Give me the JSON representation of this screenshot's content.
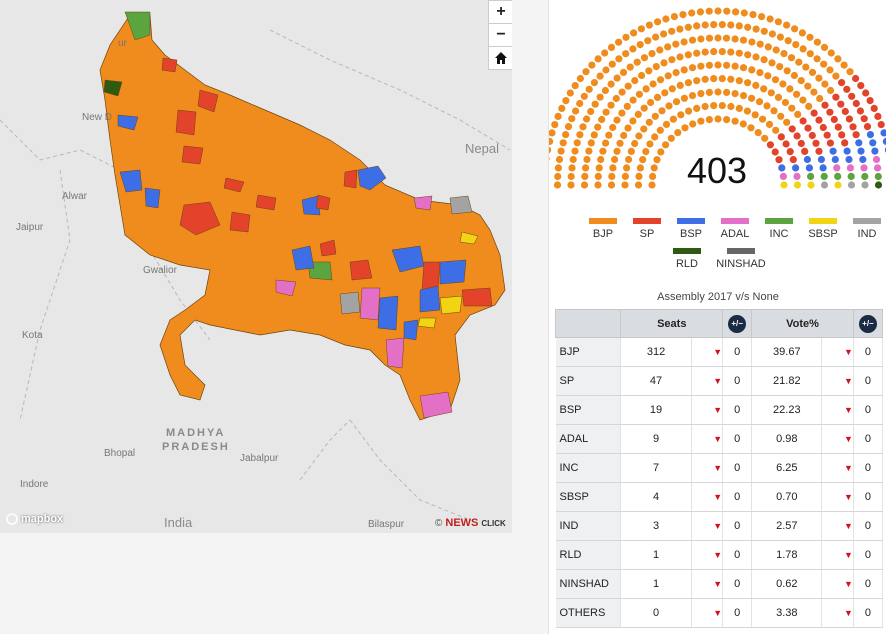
{
  "map": {
    "labels": {
      "new_delhi": "New D",
      "alwar": "Alwar",
      "jaipur": "Jaipur",
      "gwalior": "Gwalior",
      "kota": "Kota",
      "nepal": "Nepal",
      "madhya": "MADHYA",
      "pradesh": "PRADESH",
      "bhopal": "Bhopal",
      "jabalpur": "Jabalpur",
      "indore": "Indore",
      "india": "India",
      "bilaspur": "Bilaspur",
      "ur": "ur"
    },
    "controls": {
      "zoom_in": "+",
      "zoom_out": "−",
      "home": "⌂"
    },
    "attribution": {
      "mapbox": "mapbox",
      "copyright": "©",
      "news": "NEWS",
      "click": "CLICK"
    }
  },
  "parliament": {
    "total": "403",
    "parties": [
      {
        "name": "BJP",
        "seats": 312,
        "color": "#ef8c1d"
      },
      {
        "name": "SP",
        "seats": 47,
        "color": "#e2432a"
      },
      {
        "name": "BSP",
        "seats": 19,
        "color": "#3d6ee6"
      },
      {
        "name": "ADAL",
        "seats": 9,
        "color": "#e46fc6"
      },
      {
        "name": "INC",
        "seats": 7,
        "color": "#5ba43f"
      },
      {
        "name": "SBSP",
        "seats": 4,
        "color": "#f1d515"
      },
      {
        "name": "IND",
        "seats": 3,
        "color": "#a3a3a3"
      },
      {
        "name": "RLD",
        "seats": 1,
        "color": "#2e5a11"
      },
      {
        "name": "NINSHAD",
        "seats": 1,
        "color": "#666666"
      }
    ]
  },
  "table": {
    "caption": "Assembly 2017 v/s None",
    "headers": {
      "seats": "Seats",
      "vote": "Vote%",
      "toggle": "+/−"
    },
    "rows": [
      {
        "party": "BJP",
        "seats": "312",
        "seats_change": "0",
        "vote": "39.67",
        "vote_change": "0"
      },
      {
        "party": "SP",
        "seats": "47",
        "seats_change": "0",
        "vote": "21.82",
        "vote_change": "0"
      },
      {
        "party": "BSP",
        "seats": "19",
        "seats_change": "0",
        "vote": "22.23",
        "vote_change": "0"
      },
      {
        "party": "ADAL",
        "seats": "9",
        "seats_change": "0",
        "vote": "0.98",
        "vote_change": "0"
      },
      {
        "party": "INC",
        "seats": "7",
        "seats_change": "0",
        "vote": "6.25",
        "vote_change": "0"
      },
      {
        "party": "SBSP",
        "seats": "4",
        "seats_change": "0",
        "vote": "0.70",
        "vote_change": "0"
      },
      {
        "party": "IND",
        "seats": "3",
        "seats_change": "0",
        "vote": "2.57",
        "vote_change": "0"
      },
      {
        "party": "RLD",
        "seats": "1",
        "seats_change": "0",
        "vote": "1.78",
        "vote_change": "0"
      },
      {
        "party": "NINSHAD",
        "seats": "1",
        "seats_change": "0",
        "vote": "0.62",
        "vote_change": "0"
      },
      {
        "party": "OTHERS",
        "seats": "0",
        "seats_change": "0",
        "vote": "3.38",
        "vote_change": "0"
      }
    ]
  }
}
